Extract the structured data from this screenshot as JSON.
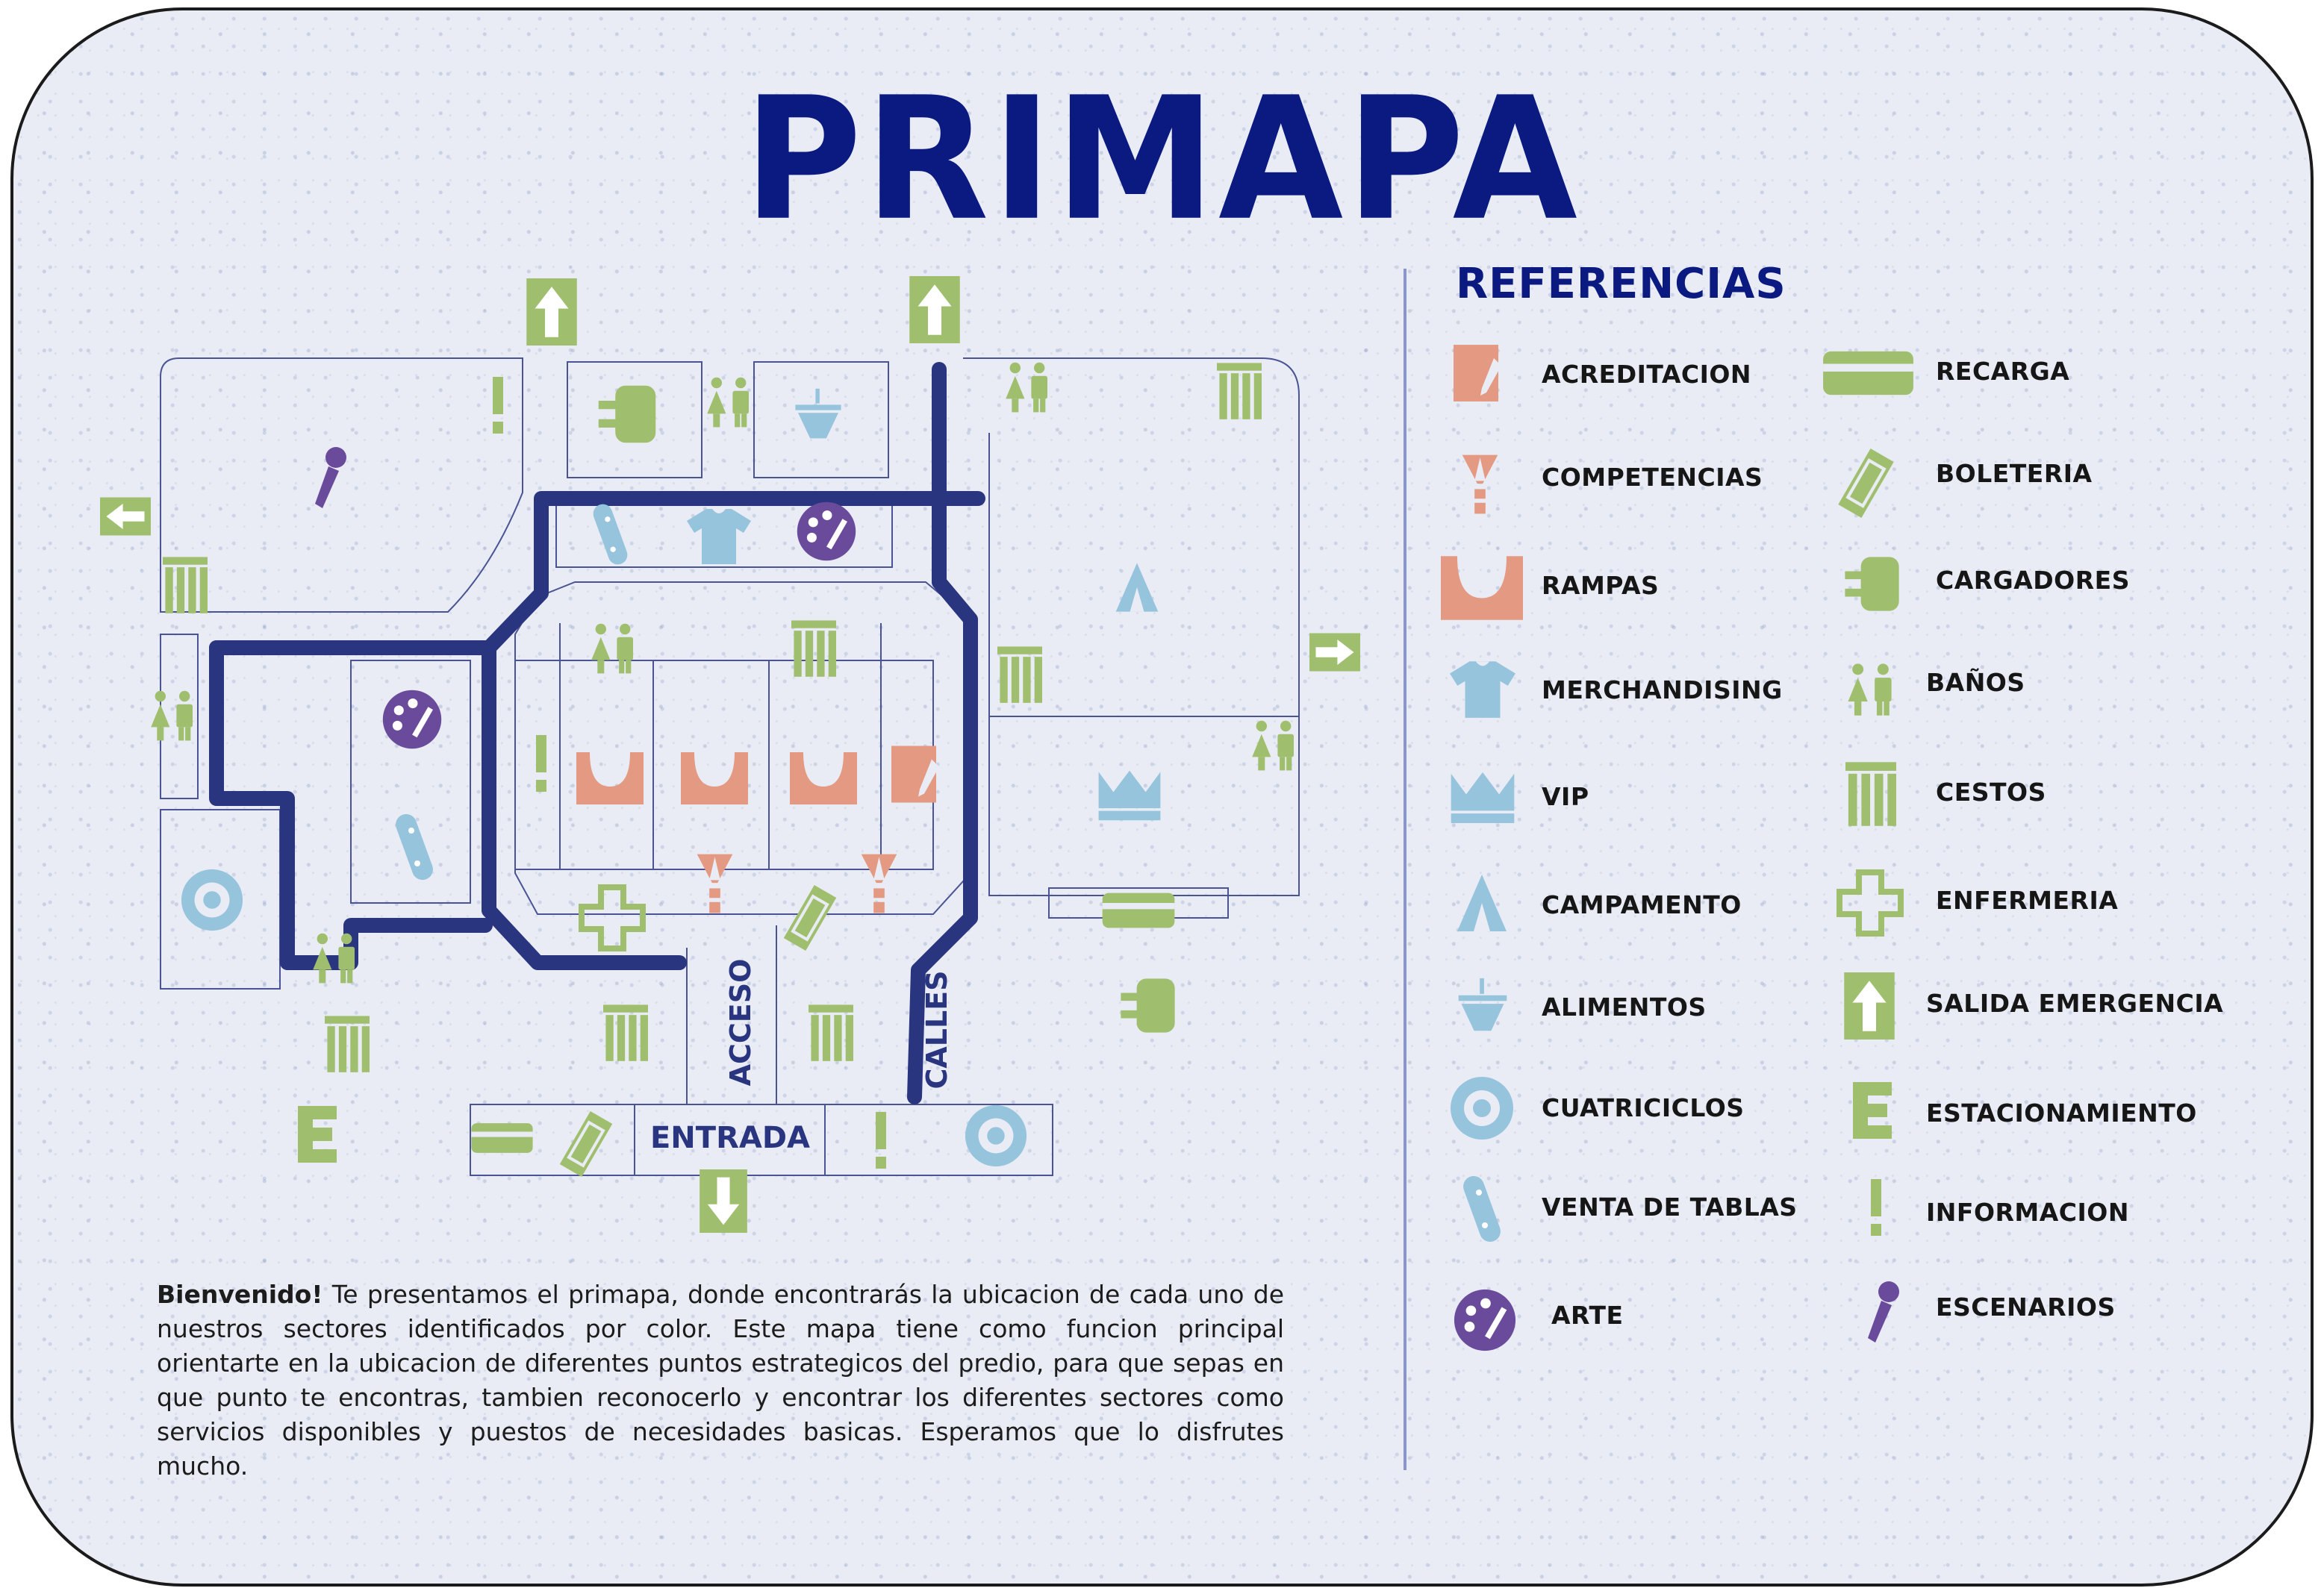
{
  "title": "PRIMAPA",
  "colors": {
    "navy": "#0a1a80",
    "path": "#2a3580",
    "green": "#9fbf6e",
    "blue": "#96c4dd",
    "salmon": "#e49a82",
    "purple": "#6a4a9a",
    "border": "#1b1b1b"
  },
  "map": {
    "street_labels": [
      "ACCESO",
      "CALLES",
      "ENTRADA"
    ],
    "icons": [
      "salida-emergencia-icon",
      "informacion-icon",
      "escenarios-icon",
      "cargadores-icon",
      "banos-icon",
      "alimentos-icon",
      "cestos-icon",
      "venta-de-tablas-icon",
      "merchandising-icon",
      "arte-icon",
      "campamento-icon",
      "rampas-icon",
      "acreditacion-icon",
      "competencias-icon",
      "enfermeria-icon",
      "boleteria-icon",
      "vip-icon",
      "recarga-icon",
      "cuatriciclos-icon",
      "estacionamiento-icon"
    ]
  },
  "legend": {
    "title": "REFERENCIAS",
    "left": [
      {
        "label": "ACREDITACION",
        "icon": "acreditacion-icon"
      },
      {
        "label": "COMPETENCIAS",
        "icon": "competencias-icon"
      },
      {
        "label": "RAMPAS",
        "icon": "rampas-icon"
      },
      {
        "label": "MERCHANDISING",
        "icon": "merchandising-icon"
      },
      {
        "label": "VIP",
        "icon": "vip-icon"
      },
      {
        "label": "CAMPAMENTO",
        "icon": "campamento-icon"
      },
      {
        "label": "ALIMENTOS",
        "icon": "alimentos-icon"
      },
      {
        "label": "CUATRICICLOS",
        "icon": "cuatriciclos-icon"
      },
      {
        "label": "VENTA DE TABLAS",
        "icon": "venta-de-tablas-icon"
      },
      {
        "label": "ARTE",
        "icon": "arte-icon"
      }
    ],
    "right": [
      {
        "label": "RECARGA",
        "icon": "recarga-icon"
      },
      {
        "label": "BOLETERIA",
        "icon": "boleteria-icon"
      },
      {
        "label": "CARGADORES",
        "icon": "cargadores-icon"
      },
      {
        "label": "BAÑOS",
        "icon": "banos-icon"
      },
      {
        "label": "CESTOS",
        "icon": "cestos-icon"
      },
      {
        "label": "ENFERMERIA",
        "icon": "enfermeria-icon"
      },
      {
        "label": "SALIDA EMERGENCIA",
        "icon": "salida-emergencia-icon"
      },
      {
        "label": "ESTACIONAMIENTO",
        "icon": "estacionamiento-icon"
      },
      {
        "label": "INFORMACION",
        "icon": "informacion-icon"
      },
      {
        "label": "ESCENARIOS",
        "icon": "escenarios-icon"
      }
    ]
  },
  "intro": {
    "lead": "Bienvenido!",
    "text": " Te presentamos el primapa, donde encontrarás la ubicacion de cada uno de nuestros sectores identificados por color. Este mapa tiene como funcion principal orientarte en la ubicacion de diferentes puntos estrategicos del predio, para que sepas en que punto te encontras, tambien reconocerlo y encontrar los diferentes sectores como servicios disponibles y puestos de necesidades basicas. Esperamos que lo disfrutes mucho."
  }
}
